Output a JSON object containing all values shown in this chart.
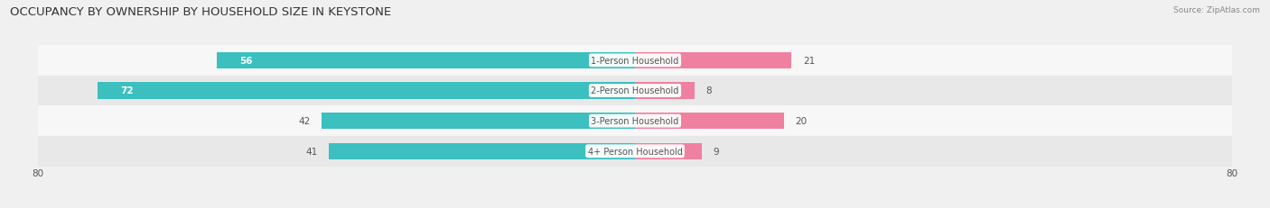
{
  "title": "OCCUPANCY BY OWNERSHIP BY HOUSEHOLD SIZE IN KEYSTONE",
  "source": "Source: ZipAtlas.com",
  "categories": [
    "1-Person Household",
    "2-Person Household",
    "3-Person Household",
    "4+ Person Household"
  ],
  "owner_values": [
    56,
    72,
    42,
    41
  ],
  "renter_values": [
    21,
    8,
    20,
    9
  ],
  "axis_max": 80,
  "owner_color": "#3bbfbf",
  "renter_color": "#f080a0",
  "background_color": "#f0f0f0",
  "row_bg_light": "#f7f7f7",
  "row_bg_dark": "#e8e8e8",
  "title_fontsize": 9.5,
  "label_fontsize": 7.5,
  "bar_height": 0.55,
  "figsize": [
    14.06,
    2.32
  ],
  "dpi": 100
}
